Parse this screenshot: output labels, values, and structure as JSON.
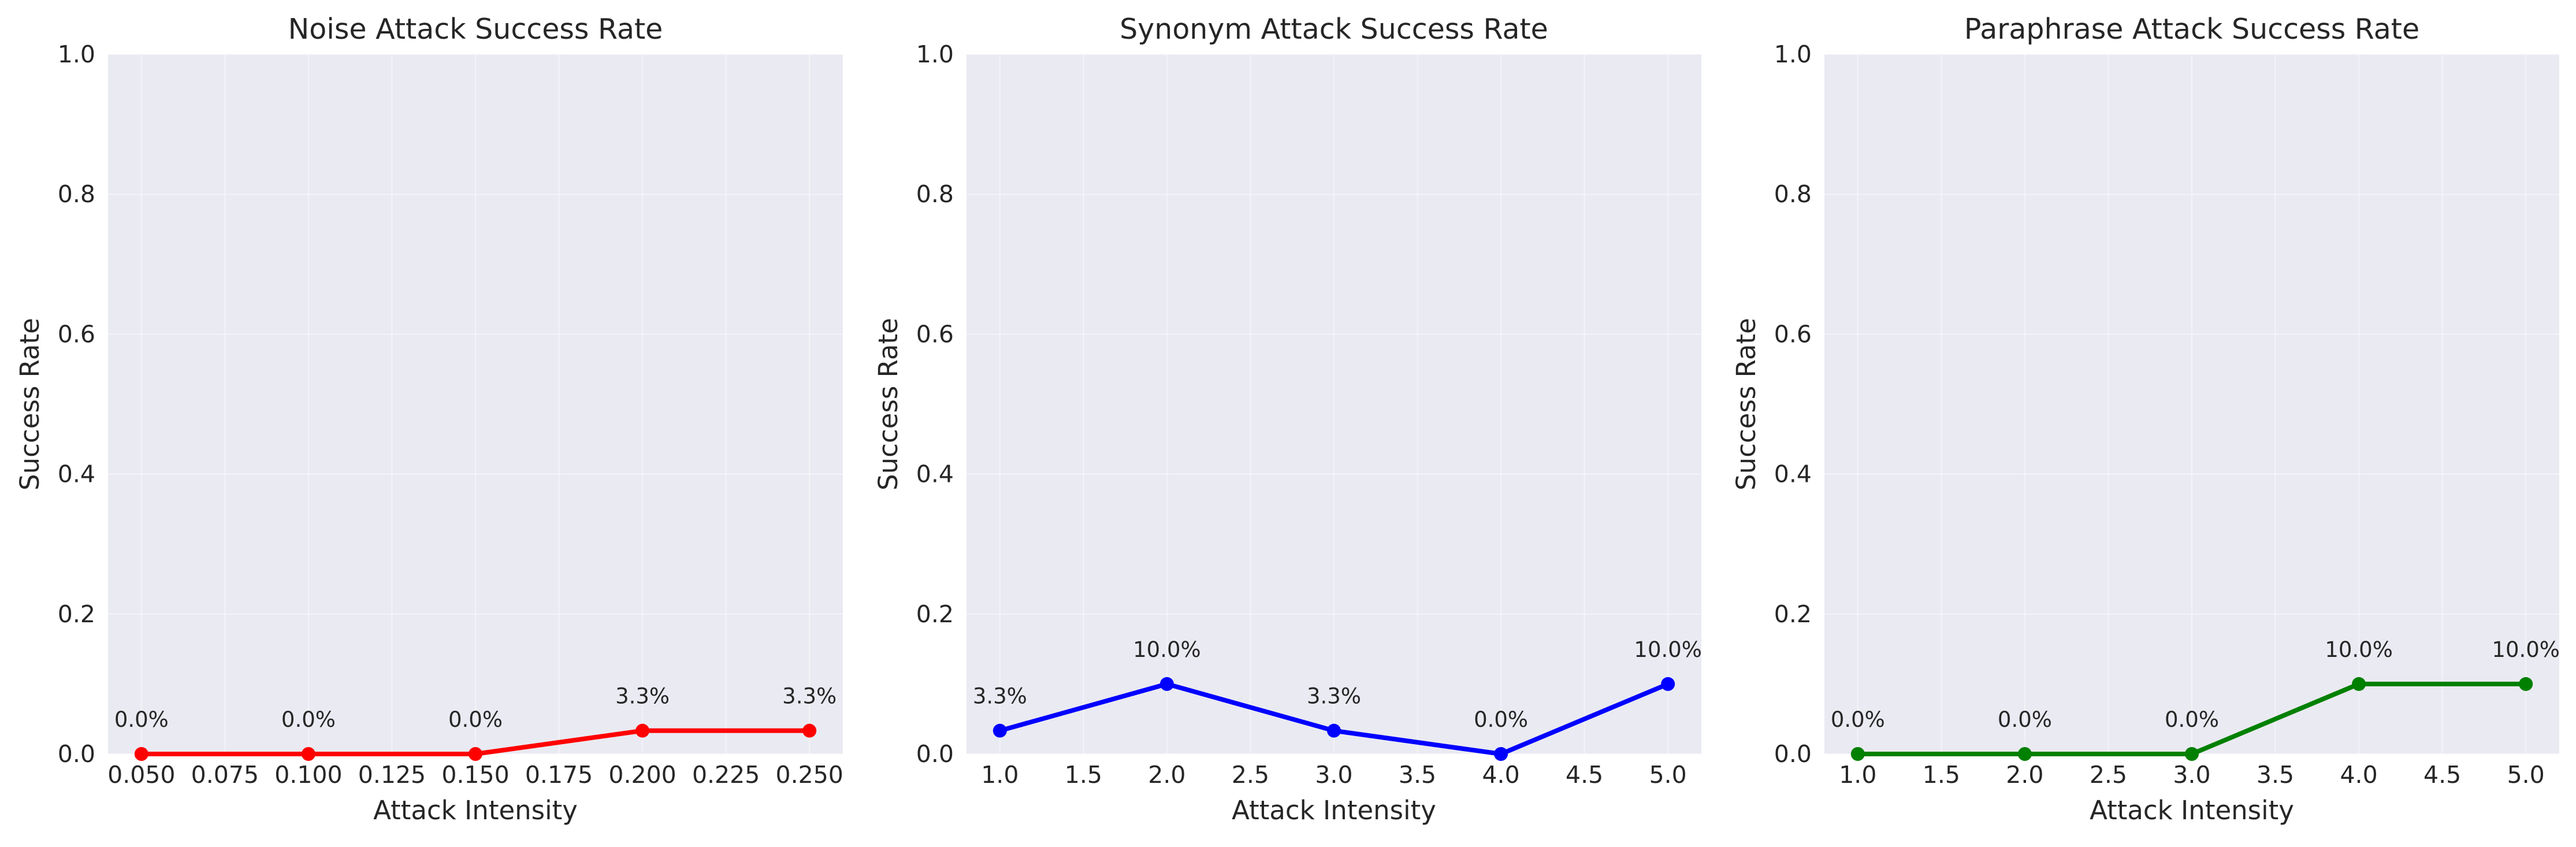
{
  "chart_data": [
    {
      "type": "line",
      "title": "Noise Attack Success Rate",
      "xlabel": "Attack Intensity",
      "ylabel": "Success Rate",
      "x": [
        0.05,
        0.1,
        0.15,
        0.2,
        0.25
      ],
      "y": [
        0.0,
        0.0,
        0.0,
        0.0333,
        0.0333
      ],
      "point_labels": [
        "0.0%",
        "0.0%",
        "0.0%",
        "3.3%",
        "3.3%"
      ],
      "xlim": [
        0.04,
        0.26
      ],
      "ylim": [
        0,
        1
      ],
      "x_ticks": [
        0.05,
        0.075,
        0.1,
        0.125,
        0.15,
        0.175,
        0.2,
        0.225,
        0.25
      ],
      "x_tick_labels": [
        "0.050",
        "0.075",
        "0.100",
        "0.125",
        "0.150",
        "0.175",
        "0.200",
        "0.225",
        "0.250"
      ],
      "y_ticks": [
        0,
        0.2,
        0.4,
        0.6,
        0.8,
        1.0
      ],
      "y_tick_labels": [
        "0.0",
        "0.2",
        "0.4",
        "0.6",
        "0.8",
        "1.0"
      ],
      "color": "#ff0000",
      "grid": true
    },
    {
      "type": "line",
      "title": "Synonym Attack Success Rate",
      "xlabel": "Attack Intensity",
      "ylabel": "Success Rate",
      "x": [
        1,
        2,
        3,
        4,
        5
      ],
      "y": [
        0.0333,
        0.1,
        0.0333,
        0.0,
        0.1
      ],
      "point_labels": [
        "3.3%",
        "10.0%",
        "3.3%",
        "0.0%",
        "10.0%"
      ],
      "xlim": [
        0.8,
        5.2
      ],
      "ylim": [
        0,
        1
      ],
      "x_ticks": [
        1,
        1.5,
        2,
        2.5,
        3,
        3.5,
        4,
        4.5,
        5
      ],
      "x_tick_labels": [
        "1.0",
        "1.5",
        "2.0",
        "2.5",
        "3.0",
        "3.5",
        "4.0",
        "4.5",
        "5.0"
      ],
      "y_ticks": [
        0,
        0.2,
        0.4,
        0.6,
        0.8,
        1.0
      ],
      "y_tick_labels": [
        "0.0",
        "0.2",
        "0.4",
        "0.6",
        "0.8",
        "1.0"
      ],
      "color": "#0000ff",
      "grid": true
    },
    {
      "type": "line",
      "title": "Paraphrase Attack Success Rate",
      "xlabel": "Attack Intensity",
      "ylabel": "Success Rate",
      "x": [
        1,
        2,
        3,
        4,
        5
      ],
      "y": [
        0.0,
        0.0,
        0.0,
        0.1,
        0.1
      ],
      "point_labels": [
        "0.0%",
        "0.0%",
        "0.0%",
        "10.0%",
        "10.0%"
      ],
      "xlim": [
        0.8,
        5.2
      ],
      "ylim": [
        0,
        1
      ],
      "x_ticks": [
        1,
        1.5,
        2,
        2.5,
        3,
        3.5,
        4,
        4.5,
        5
      ],
      "x_tick_labels": [
        "1.0",
        "1.5",
        "2.0",
        "2.5",
        "3.0",
        "3.5",
        "4.0",
        "4.5",
        "5.0"
      ],
      "y_ticks": [
        0,
        0.2,
        0.4,
        0.6,
        0.8,
        1.0
      ],
      "y_tick_labels": [
        "0.0",
        "0.2",
        "0.4",
        "0.6",
        "0.8",
        "1.0"
      ],
      "color": "#008000",
      "grid": true
    }
  ],
  "style": {
    "plot_background": "#eaeaf2",
    "grid_color": "#ffffff",
    "text_color": "#262626"
  }
}
